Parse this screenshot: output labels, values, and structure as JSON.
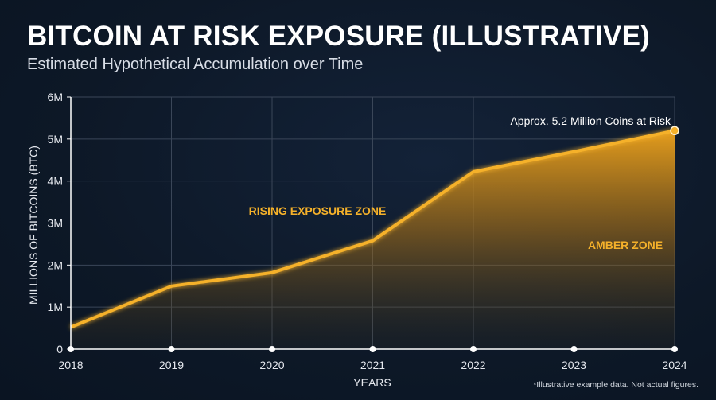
{
  "colors": {
    "background": "#0e1a2b",
    "line": "#f5b12a",
    "fill": "#e79d17",
    "zone_label": "#f5b12a",
    "grid": "#3a4658",
    "axis": "#ffffff"
  },
  "chart_data": {
    "type": "area",
    "title": "BITCOIN AT RISK EXPOSURE (ILLUSTRATIVE)",
    "subtitle": "Estimated Hypothetical Accumulation over Time",
    "xlabel": "YEARS",
    "ylabel": "MILLIONS OF BITCOINS (BTC)",
    "x": [
      2018,
      2019,
      2020,
      2021,
      2022,
      2023,
      2024
    ],
    "x_tick_labels": [
      "2018",
      "2019",
      "2020",
      "2021",
      "2022",
      "2023",
      "2024"
    ],
    "y_tick_values": [
      0,
      1,
      2,
      3,
      4,
      5,
      6
    ],
    "y_tick_labels": [
      "0",
      "1M",
      "2M",
      "3M",
      "4M",
      "5M",
      "6M"
    ],
    "ylim": [
      0,
      6
    ],
    "xlim": [
      2018,
      2024
    ],
    "grid": true,
    "series": [
      {
        "values": [
          0.52,
          1.5,
          1.82,
          2.58,
          4.22,
          4.7,
          5.2
        ]
      }
    ],
    "annotations": {
      "endpoint": "Approx. 5.2 Million Coins at Risk",
      "zone_rising": "RISING EXPOSURE ZONE",
      "zone_amber": "AMBER ZONE"
    },
    "footnote": "*Illustrative example data. Not actual figures."
  }
}
